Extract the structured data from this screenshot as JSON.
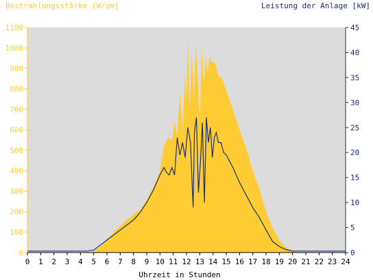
{
  "chart_data": {
    "type": "area",
    "title_left": "Bestrahlungsstärke [W/qm]",
    "title_right": "Leistung der Anlage [kW]",
    "xlabel": "Uhrzeit in Stunden",
    "xlim": [
      0,
      24
    ],
    "x_ticks": [
      "0",
      "1",
      "2",
      "3",
      "4",
      "5",
      "6",
      "7",
      "8",
      "9",
      "10",
      "11",
      "12",
      "13",
      "14",
      "15",
      "16",
      "17",
      "18",
      "19",
      "20",
      "21",
      "22",
      "23",
      "24"
    ],
    "y_left": {
      "ylim": [
        0,
        1100
      ],
      "ticks": [
        "0",
        "100",
        "200",
        "300",
        "400",
        "500",
        "600",
        "700",
        "800",
        "900",
        "1000",
        "1100"
      ],
      "color": "#ffcc33"
    },
    "y_right": {
      "ylim": [
        0,
        45
      ],
      "ticks": [
        "0",
        "5",
        "10",
        "15",
        "20",
        "25",
        "30",
        "35",
        "40",
        "45"
      ],
      "color": "#1a2f6e"
    },
    "grid": false,
    "background": "#dcdcdc",
    "series": [
      {
        "name": "Bestrahlungsstärke",
        "axis": "left",
        "style": "area",
        "color": "#ffcc33",
        "x": [
          0,
          4.5,
          5,
          5.5,
          6,
          6.5,
          7,
          7.5,
          8,
          8.5,
          9,
          9.5,
          10,
          10.3,
          10.6,
          10.9,
          11.1,
          11.3,
          11.5,
          11.7,
          11.9,
          12.0,
          12.1,
          12.25,
          12.4,
          12.55,
          12.7,
          12.85,
          13.0,
          13.15,
          13.3,
          13.45,
          13.6,
          13.75,
          13.9,
          14.05,
          14.2,
          14.35,
          14.5,
          14.7,
          15,
          15.5,
          16,
          16.5,
          17,
          17.5,
          18,
          18.5,
          19,
          19.5,
          20,
          20.3,
          20.6,
          21,
          24
        ],
        "y": [
          0,
          0,
          5,
          30,
          60,
          100,
          130,
          160,
          185,
          210,
          260,
          320,
          400,
          520,
          560,
          550,
          640,
          570,
          780,
          600,
          880,
          720,
          1040,
          690,
          980,
          760,
          1020,
          850,
          640,
          1000,
          820,
          950,
          880,
          960,
          930,
          930,
          920,
          870,
          860,
          850,
          790,
          700,
          600,
          510,
          400,
          310,
          200,
          120,
          60,
          25,
          8,
          3,
          0,
          0,
          0
        ]
      },
      {
        "name": "Leistung der Anlage",
        "axis": "right",
        "style": "line",
        "color": "#1a2f6e",
        "x": [
          0,
          4.5,
          5,
          5.5,
          6,
          6.5,
          7,
          7.5,
          8,
          8.5,
          9,
          9.5,
          10,
          10.3,
          10.5,
          10.7,
          10.9,
          11.1,
          11.3,
          11.5,
          11.7,
          11.9,
          12.1,
          12.3,
          12.5,
          12.6,
          12.75,
          12.9,
          13.05,
          13.2,
          13.35,
          13.5,
          13.65,
          13.8,
          13.95,
          14.1,
          14.25,
          14.4,
          14.6,
          14.8,
          15,
          15.5,
          16,
          16.5,
          17,
          17.5,
          18,
          18.5,
          19,
          19.5,
          20,
          21,
          24
        ],
        "y": [
          0.3,
          0.3,
          0.5,
          1.5,
          2.5,
          3.5,
          4.5,
          5.5,
          6.5,
          8,
          10,
          12.5,
          15.5,
          17,
          16,
          15.5,
          17,
          15.5,
          23,
          19.5,
          22,
          19,
          25,
          22,
          9,
          24,
          27,
          12,
          18,
          26,
          10,
          27,
          22,
          25,
          19,
          23,
          24,
          22,
          22,
          20,
          19.5,
          17,
          14,
          11.5,
          9,
          7,
          4.5,
          2.2,
          1.2,
          0.6,
          0.3,
          0.3,
          0.3
        ]
      }
    ]
  }
}
